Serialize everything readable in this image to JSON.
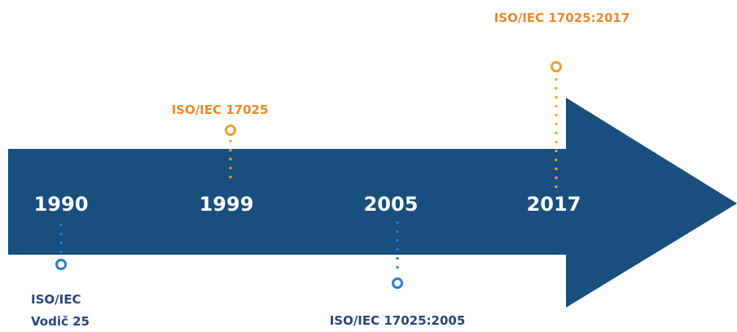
{
  "timeline": {
    "events": [
      {
        "year": "1990",
        "label": [
          "ISO/IEC",
          "Vodič 25"
        ]
      },
      {
        "year": "1999",
        "label": [
          "ISO/IEC 17025"
        ]
      },
      {
        "year": "2005",
        "label": [
          "ISO/IEC 17025:2005"
        ]
      },
      {
        "year": "2017",
        "label": [
          "ISO/IEC 17025:2017"
        ]
      }
    ]
  }
}
